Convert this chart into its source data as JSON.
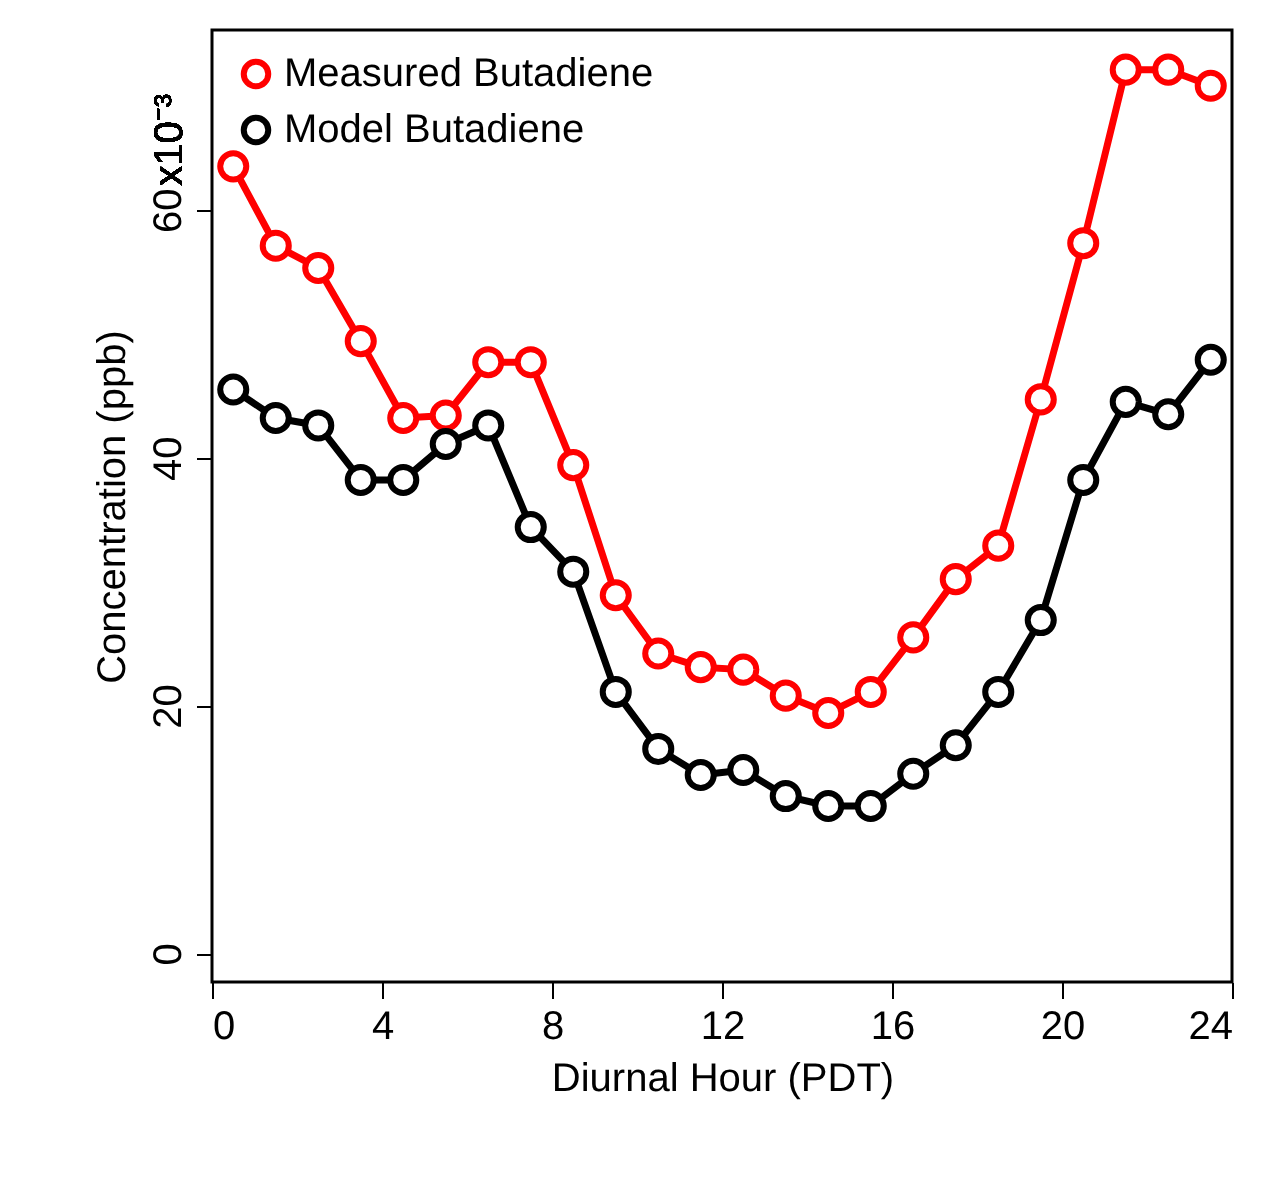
{
  "chart_data": {
    "type": "line",
    "xlabel": "Diurnal Hour (PDT)",
    "ylabel": "Concentration (ppb)",
    "x": [
      0.5,
      1.5,
      2.5,
      3.5,
      4.5,
      5.5,
      6.5,
      7.5,
      8.5,
      9.5,
      10.5,
      11.5,
      12.5,
      13.5,
      14.5,
      15.5,
      16.5,
      17.5,
      18.5,
      19.5,
      20.5,
      21.5,
      22.5,
      23.5
    ],
    "series": [
      {
        "name": "Measured Butadiene",
        "color": "#ff0000",
        "values": [
          63.5,
          57.1,
          55.3,
          49.4,
          43.2,
          43.4,
          47.7,
          47.7,
          39.4,
          28.9,
          24.2,
          23.1,
          22.9,
          20.8,
          19.4,
          21.1,
          25.5,
          30.2,
          32.9,
          44.7,
          57.3,
          71.3,
          71.3,
          70.0
        ]
      },
      {
        "name": "Model Butadiene",
        "color": "#000000",
        "values": [
          45.5,
          43.2,
          42.6,
          38.2,
          38.2,
          41.1,
          42.6,
          34.4,
          30.8,
          21.1,
          16.5,
          14.4,
          14.8,
          12.7,
          11.9,
          11.9,
          14.5,
          16.8,
          21.1,
          26.9,
          38.2,
          44.5,
          43.5,
          47.9
        ]
      }
    ],
    "xlim": [
      0,
      24
    ],
    "xticks": [
      0,
      4,
      8,
      12,
      16,
      20,
      24
    ],
    "ylim": [
      -2.3,
      74.5
    ],
    "yticks": [
      0,
      20,
      40,
      60
    ],
    "annotations": [
      "x10⁻³"
    ],
    "grid": false,
    "legend": "top left",
    "marker": "circle",
    "line_style": "solid"
  }
}
